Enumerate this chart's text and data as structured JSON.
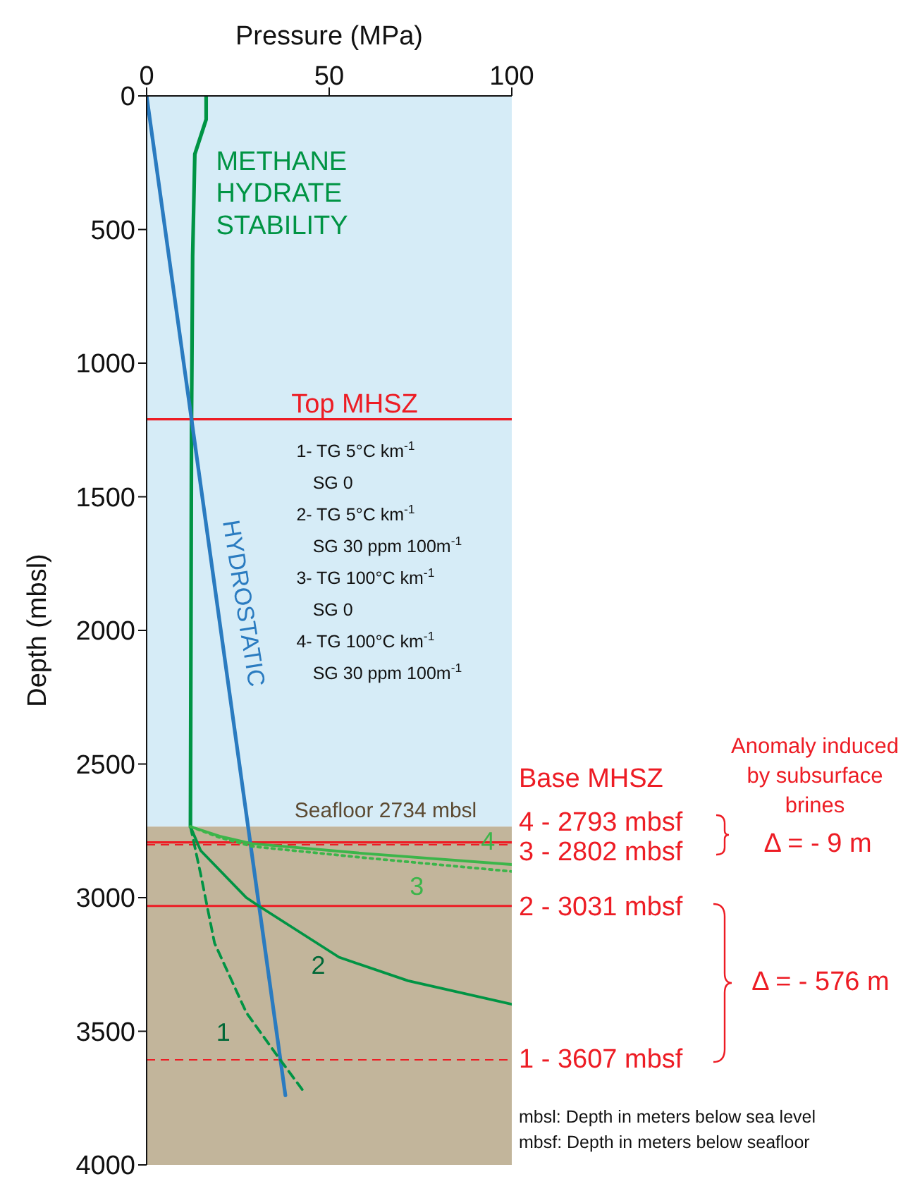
{
  "chart_data": {
    "type": "line",
    "xlabel": "Pressure (MPa)",
    "ylabel": "Depth (mbsl)",
    "xlim": [
      0,
      100
    ],
    "xticks": [
      0,
      50,
      100
    ],
    "ylim": [
      4000,
      0
    ],
    "yticks": [
      0,
      500,
      1000,
      1500,
      2000,
      2500,
      3000,
      3500,
      4000
    ],
    "marker": "none",
    "series": [
      {
        "name": "METHANE HYDRATE STABILITY",
        "color": "#009444",
        "x": [
          16.3,
          16.3,
          13.2,
          12.6,
          12.3,
          12.0
        ],
        "values": [
          0,
          88,
          218,
          600,
          1210,
          2734
        ]
      },
      {
        "name": "HYDROSTATIC",
        "color": "#2a7bc0",
        "x": [
          0,
          38
        ],
        "values": [
          0,
          3740
        ]
      },
      {
        "name": "1",
        "color": "#009444",
        "line_style": "dashed",
        "x": [
          12.0,
          14.8,
          18.6,
          27.3,
          36.6,
          43
        ],
        "values": [
          2734,
          2912,
          3170,
          3430,
          3607,
          3725
        ]
      },
      {
        "name": "2",
        "color": "#009444",
        "x": [
          12.0,
          14.8,
          27.3,
          30.7,
          52.7,
          71.6,
          100
        ],
        "values": [
          2734,
          2824,
          3000,
          3031,
          3223,
          3311,
          3399
        ]
      },
      {
        "name": "3",
        "color": "#3cb54a",
        "line_style": "dotted",
        "x": [
          12.0,
          20,
          28.8,
          59,
          100
        ],
        "values": [
          2734,
          2775,
          2808,
          2850,
          2902
        ]
      },
      {
        "name": "4",
        "color": "#3cb54a",
        "x": [
          12.0,
          20,
          28.8,
          59,
          100
        ],
        "values": [
          2734,
          2770,
          2798,
          2834,
          2876
        ]
      }
    ],
    "bands": [
      {
        "axis": "y",
        "from": 0,
        "to": 2734,
        "color": "#d6ecf7"
      },
      {
        "axis": "y",
        "from": 2734,
        "to": 4000,
        "color": "#c2b59b",
        "label": "Seafloor 2734 mbsl"
      }
    ],
    "ref_lines": [
      {
        "axis": "y",
        "value": 1210,
        "label": "Top MHSZ",
        "color": "#ed1c24",
        "line_style": "solid"
      },
      {
        "axis": "y",
        "value": 2793,
        "color": "#ed1c24",
        "line_style": "solid"
      },
      {
        "axis": "y",
        "value": 2802,
        "color": "#ed1c24",
        "line_style": "dashed"
      },
      {
        "axis": "y",
        "value": 3031,
        "color": "#ed1c24",
        "line_style": "solid"
      },
      {
        "axis": "y",
        "value": 3607,
        "color": "#ed1c24",
        "line_style": "dashed"
      }
    ],
    "annotations": [
      "1- TG 5°C km$^{-1}$",
      "SG 0",
      "2- TG 5°C km$^{-1}$",
      "SG 30 ppm 100m$^{-1}$",
      "3- TG 100°C km$^{-1}$",
      "SG 0",
      "4- TG 100°C km$^{-1}$",
      "SG 30 ppm 100m$^{-1}$",
      "Base MHSZ",
      "4 - 2793 mbsf",
      "3 - 2802 mbsf",
      "2 - 3031 mbsf",
      "1 - 3607 mbsf",
      "Anomaly induced by subsurface brines",
      "Δ = - 9 m",
      "Δ = - 576 m",
      "mbsl: Depth in meters below sea level",
      "mbsf: Depth in meters below seafloor"
    ]
  }
}
